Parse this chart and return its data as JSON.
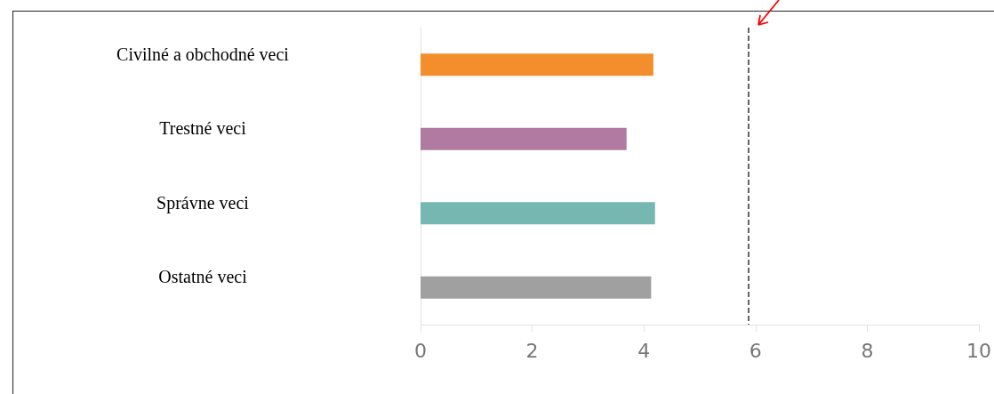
{
  "chart_data": {
    "type": "bar",
    "orientation": "horizontal",
    "categories": [
      "Civilné a obchodné veci",
      "Trestné veci",
      "Správne veci",
      "Ostatné veci"
    ],
    "values": [
      4.17,
      3.69,
      4.2,
      4.13
    ],
    "colors": [
      "#f28e2b",
      "#b07aa1",
      "#76b7b2",
      "#a0a0a0"
    ],
    "xlim": [
      0,
      10
    ],
    "xticks": [
      0,
      2,
      4,
      6,
      8,
      10
    ],
    "grid": false,
    "ref_lines": [
      {
        "axis": "x",
        "value": 5.87,
        "color": "#333333",
        "line_style": "dashed"
      }
    ]
  }
}
